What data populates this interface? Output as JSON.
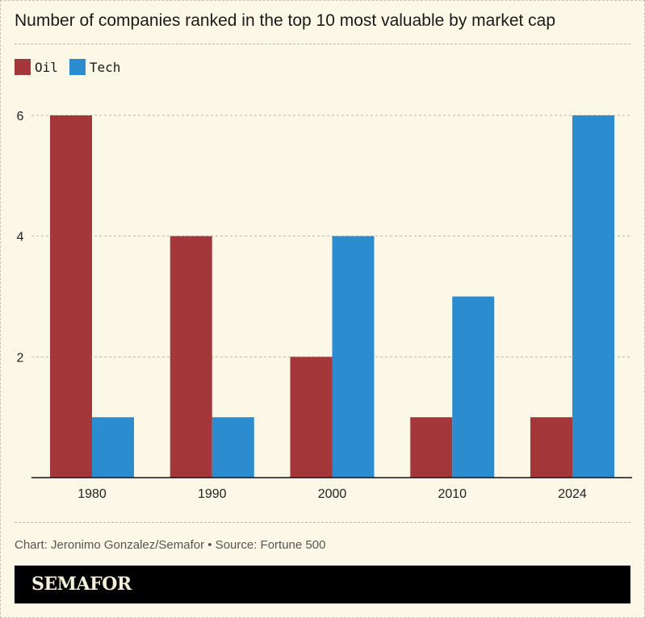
{
  "chart_data": {
    "type": "bar",
    "title": "Number of companies ranked in the top 10 most valuable by market cap",
    "categories": [
      "1980",
      "1990",
      "2000",
      "2010",
      "2024"
    ],
    "series": [
      {
        "name": "Oil",
        "color": "#a4373a",
        "values": [
          6,
          4,
          2,
          1,
          1
        ]
      },
      {
        "name": "Tech",
        "color": "#2b8ccf",
        "values": [
          1,
          1,
          4,
          3,
          6
        ]
      }
    ],
    "yticks": [
      2,
      4,
      6
    ],
    "ylim": [
      0,
      6
    ],
    "xlabel": "",
    "ylabel": "",
    "grid": true,
    "legend": "top-left"
  },
  "footer": {
    "credit": "Chart: Jeronimo Gonzalez/Semafor • Source: Fortune 500",
    "brand": "SEMAFOR"
  }
}
